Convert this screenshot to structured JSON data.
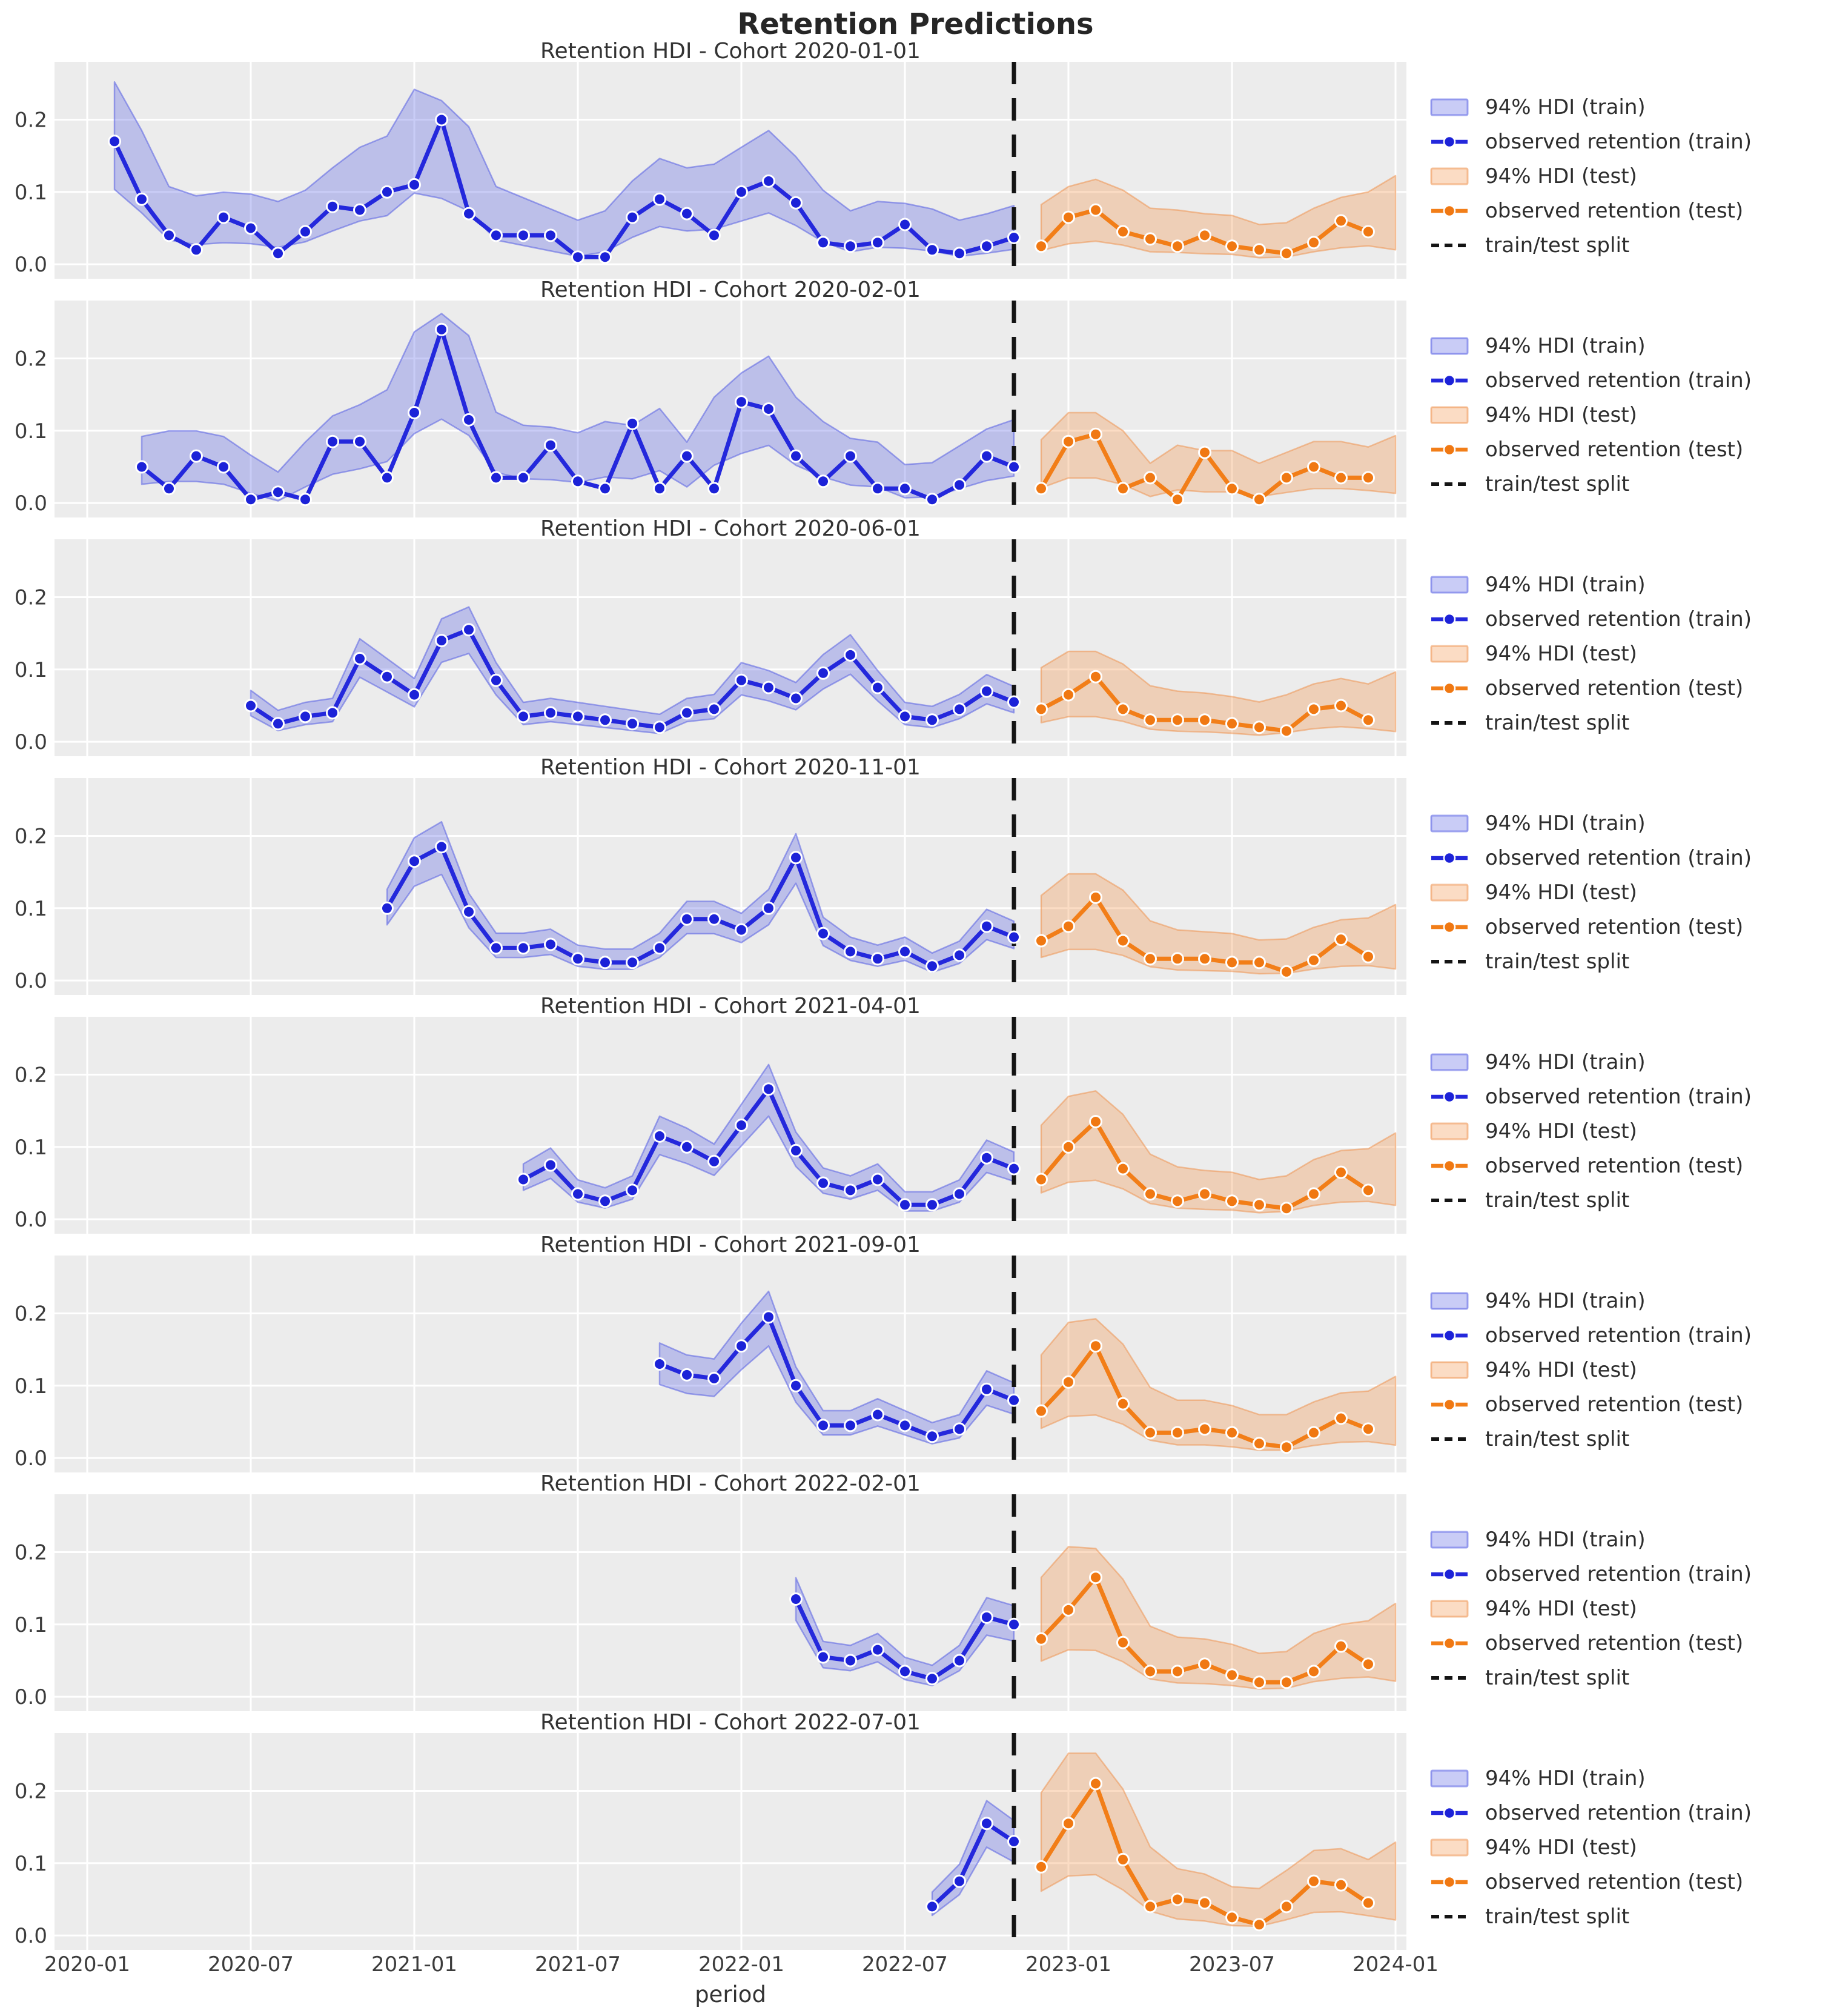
{
  "chart_data": {
    "type": "line",
    "suptitle": "Retention Predictions",
    "xlabel": "period",
    "x_ticks": [
      "2020-01",
      "2020-07",
      "2021-01",
      "2021-07",
      "2022-01",
      "2022-07",
      "2023-01",
      "2023-07",
      "2024-01"
    ],
    "y_ticks": [
      "0.0",
      "0.1",
      "0.2"
    ],
    "xlim_months": [
      -1.2,
      48.4
    ],
    "ylim": [
      -0.02,
      0.28
    ],
    "grid": true,
    "split_month": "2022-11",
    "legend_position": "center right, outside axes",
    "legend": [
      {
        "label": "94% HDI (train)",
        "swatch": "band-train"
      },
      {
        "label": "observed retention (train)",
        "swatch": "line-train"
      },
      {
        "label": "94% HDI (test)",
        "swatch": "band-test"
      },
      {
        "label": "observed retention (test)",
        "swatch": "line-test"
      },
      {
        "label": "train/test split",
        "swatch": "dashed-split"
      }
    ],
    "colors": {
      "train_line": "#2428dc",
      "train_marker": "#1c22d8",
      "train_band_fill": "rgba(88,96,228,0.32)",
      "train_band_edge": "rgba(88,96,228,0.55)",
      "test_line": "#f27e18",
      "test_marker": "#f07812",
      "test_band_fill": "rgba(242,140,60,0.30)",
      "test_band_edge": "rgba(238,150,84,0.55)",
      "split_line": "#141414",
      "axes_bg": "#ececec",
      "grid": "#ffffff",
      "suptitle_text": "#262626",
      "title_text": "#333333",
      "tick_text": "#3c3c3c",
      "legend_text": "#2d2d2d",
      "figure_bg": "#ffffff"
    },
    "hdi_rule": {
      "note": "94% HDI bands estimated from figure; computed from observed values",
      "wide": {
        "smooth": 3,
        "lo_mult": 0.75,
        "lo_off": -0.004,
        "up_mult": 1.55,
        "up_off": 0.03,
        "up_cap": 0.262,
        "floor": 0.003,
        "extend": 0
      },
      "narrow": {
        "smooth": 1,
        "lo_mult": 0.82,
        "lo_off": -0.005,
        "up_mult": 1.1,
        "up_off": 0.016,
        "up_cap": 0.262,
        "floor": 0.003,
        "extend": 0
      },
      "test": {
        "smooth": 3,
        "lo_mult": 0.55,
        "lo_off": -0.002,
        "up_mult": 1.5,
        "up_off": 0.025,
        "up_cap": 0.252,
        "floor": 0.003,
        "extend": 1
      }
    },
    "cohorts": [
      {
        "title": "Retention HDI - Cohort 2020-01-01",
        "cohort": "2020-01-01",
        "train": {
          "start": "2020-02",
          "band": "wide",
          "values": [
            0.17,
            0.09,
            0.04,
            0.02,
            0.065,
            0.05,
            0.015,
            0.045,
            0.08,
            0.075,
            0.1,
            0.11,
            0.2,
            0.07,
            0.04,
            0.04,
            0.04,
            0.01,
            0.01,
            0.065,
            0.09,
            0.07,
            0.04,
            0.1,
            0.115,
            0.085,
            0.03,
            0.025,
            0.03,
            0.055,
            0.02,
            0.015,
            0.025,
            0.037
          ]
        },
        "test": {
          "start": "2022-12",
          "band": "test",
          "values": [
            0.025,
            0.065,
            0.075,
            0.045,
            0.035,
            0.025,
            0.04,
            0.025,
            0.02,
            0.015,
            0.03,
            0.06,
            0.045
          ]
        }
      },
      {
        "title": "Retention HDI - Cohort 2020-02-01",
        "cohort": "2020-02-01",
        "train": {
          "start": "2020-03",
          "band": "wide",
          "values": [
            0.05,
            0.02,
            0.065,
            0.05,
            0.005,
            0.015,
            0.005,
            0.085,
            0.085,
            0.035,
            0.125,
            0.24,
            0.115,
            0.035,
            0.035,
            0.08,
            0.03,
            0.02,
            0.11,
            0.02,
            0.065,
            0.02,
            0.14,
            0.13,
            0.065,
            0.03,
            0.065,
            0.02,
            0.02,
            0.005,
            0.025,
            0.065,
            0.05
          ]
        },
        "test": {
          "start": "2022-12",
          "band": "test",
          "values": [
            0.02,
            0.085,
            0.095,
            0.02,
            0.035,
            0.005,
            0.07,
            0.02,
            0.005,
            0.035,
            0.05,
            0.035,
            0.035
          ]
        }
      },
      {
        "title": "Retention HDI - Cohort 2020-06-01",
        "cohort": "2020-06-01",
        "train": {
          "start": "2020-07",
          "band": "narrow",
          "values": [
            0.05,
            0.025,
            0.035,
            0.04,
            0.115,
            0.09,
            0.065,
            0.14,
            0.155,
            0.085,
            0.035,
            0.04,
            0.035,
            0.03,
            0.025,
            0.02,
            0.04,
            0.045,
            0.085,
            0.075,
            0.06,
            0.095,
            0.12,
            0.075,
            0.035,
            0.03,
            0.045,
            0.07,
            0.055
          ]
        },
        "test": {
          "start": "2022-12",
          "band": "test",
          "values": [
            0.045,
            0.065,
            0.09,
            0.045,
            0.03,
            0.03,
            0.03,
            0.025,
            0.02,
            0.015,
            0.045,
            0.05,
            0.03
          ]
        }
      },
      {
        "title": "Retention HDI - Cohort 2020-11-01",
        "cohort": "2020-11-01",
        "train": {
          "start": "2020-12",
          "band": "narrow",
          "values": [
            0.1,
            0.165,
            0.185,
            0.095,
            0.045,
            0.045,
            0.05,
            0.03,
            0.025,
            0.025,
            0.045,
            0.085,
            0.085,
            0.07,
            0.1,
            0.17,
            0.065,
            0.04,
            0.03,
            0.04,
            0.02,
            0.035,
            0.075,
            0.06
          ]
        },
        "test": {
          "start": "2022-12",
          "band": "test",
          "values": [
            0.055,
            0.075,
            0.115,
            0.055,
            0.03,
            0.03,
            0.03,
            0.025,
            0.025,
            0.012,
            0.028,
            0.057,
            0.033
          ]
        }
      },
      {
        "title": "Retention HDI - Cohort 2021-04-01",
        "cohort": "2021-04-01",
        "train": {
          "start": "2021-05",
          "band": "narrow",
          "values": [
            0.055,
            0.075,
            0.035,
            0.025,
            0.04,
            0.115,
            0.1,
            0.08,
            0.13,
            0.18,
            0.095,
            0.05,
            0.04,
            0.055,
            0.02,
            0.02,
            0.035,
            0.085,
            0.07
          ]
        },
        "test": {
          "start": "2022-12",
          "band": "test",
          "values": [
            0.055,
            0.1,
            0.135,
            0.07,
            0.035,
            0.025,
            0.035,
            0.025,
            0.02,
            0.015,
            0.035,
            0.065,
            0.04
          ]
        }
      },
      {
        "title": "Retention HDI - Cohort 2021-09-01",
        "cohort": "2021-09-01",
        "train": {
          "start": "2021-10",
          "band": "narrow",
          "values": [
            0.13,
            0.115,
            0.11,
            0.155,
            0.195,
            0.1,
            0.045,
            0.045,
            0.06,
            0.045,
            0.03,
            0.04,
            0.095,
            0.08
          ]
        },
        "test": {
          "start": "2022-12",
          "band": "test",
          "values": [
            0.065,
            0.105,
            0.155,
            0.075,
            0.035,
            0.035,
            0.04,
            0.035,
            0.02,
            0.015,
            0.035,
            0.055,
            0.04
          ]
        }
      },
      {
        "title": "Retention HDI - Cohort 2022-02-01",
        "cohort": "2022-02-01",
        "train": {
          "start": "2022-03",
          "band": "narrow",
          "values": [
            0.135,
            0.055,
            0.05,
            0.065,
            0.035,
            0.025,
            0.05,
            0.11,
            0.1
          ]
        },
        "test": {
          "start": "2022-12",
          "band": "test",
          "values": [
            0.08,
            0.12,
            0.165,
            0.075,
            0.035,
            0.035,
            0.045,
            0.03,
            0.02,
            0.02,
            0.035,
            0.07,
            0.045
          ]
        }
      },
      {
        "title": "Retention HDI - Cohort 2022-07-01",
        "cohort": "2022-07-01",
        "train": {
          "start": "2022-08",
          "band": "narrow",
          "values": [
            0.04,
            0.075,
            0.155,
            0.13
          ]
        },
        "test": {
          "start": "2022-12",
          "band": "test",
          "values": [
            0.095,
            0.155,
            0.21,
            0.105,
            0.04,
            0.05,
            0.045,
            0.025,
            0.015,
            0.04,
            0.075,
            0.07,
            0.045
          ]
        }
      }
    ]
  }
}
